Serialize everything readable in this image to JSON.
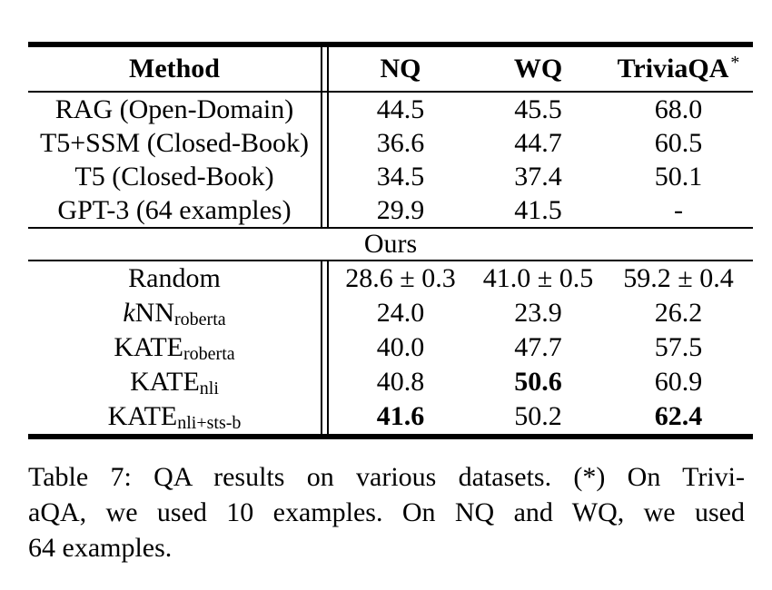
{
  "colors": {
    "ink": "#000000",
    "paper": "#ffffff"
  },
  "table": {
    "header": {
      "method": "Method",
      "nq": "NQ",
      "wq": "WQ",
      "triviaqa": "TriviaQA",
      "triviaqa_marker": "*"
    },
    "baseline_rows": [
      {
        "method": "RAG (Open-Domain)",
        "nq": "44.5",
        "wq": "45.5",
        "triviaqa": "68.0"
      },
      {
        "method": "T5+SSM (Closed-Book)",
        "nq": "36.6",
        "wq": "44.7",
        "triviaqa": "60.5"
      },
      {
        "method": "T5 (Closed-Book)",
        "nq": "34.5",
        "wq": "37.4",
        "triviaqa": "50.1"
      },
      {
        "method": "GPT-3 (64 examples)",
        "nq": "29.9",
        "wq": "41.5",
        "triviaqa": "-"
      }
    ],
    "section_label": "Ours",
    "ours_rows": [
      {
        "method_prefix": "",
        "method_main": "Random",
        "method_sub": "",
        "nq": "28.6 ± 0.3",
        "wq": "41.0 ± 0.5",
        "triviaqa": "59.2 ± 0.4"
      },
      {
        "method_prefix": "k",
        "method_main": "NN",
        "method_sub": "roberta",
        "nq": "24.0",
        "wq": "23.9",
        "triviaqa": "26.2"
      },
      {
        "method_prefix": "",
        "method_main": "KATE",
        "method_sub": "roberta",
        "nq": "40.0",
        "wq": "47.7",
        "triviaqa": "57.5"
      },
      {
        "method_prefix": "",
        "method_main": "KATE",
        "method_sub": "nli",
        "nq": "40.8",
        "wq": "50.6",
        "triviaqa": "60.9"
      },
      {
        "method_prefix": "",
        "method_main": "KATE",
        "method_sub": "nli+sts-b",
        "nq": "41.6",
        "wq": "50.2",
        "triviaqa": "62.4"
      }
    ]
  },
  "caption": {
    "line1": "Table 7: QA results on various datasets. (*) On Trivi-",
    "line2": "aQA, we used 10 examples. On NQ and WQ, we used",
    "line3": "64 examples."
  }
}
